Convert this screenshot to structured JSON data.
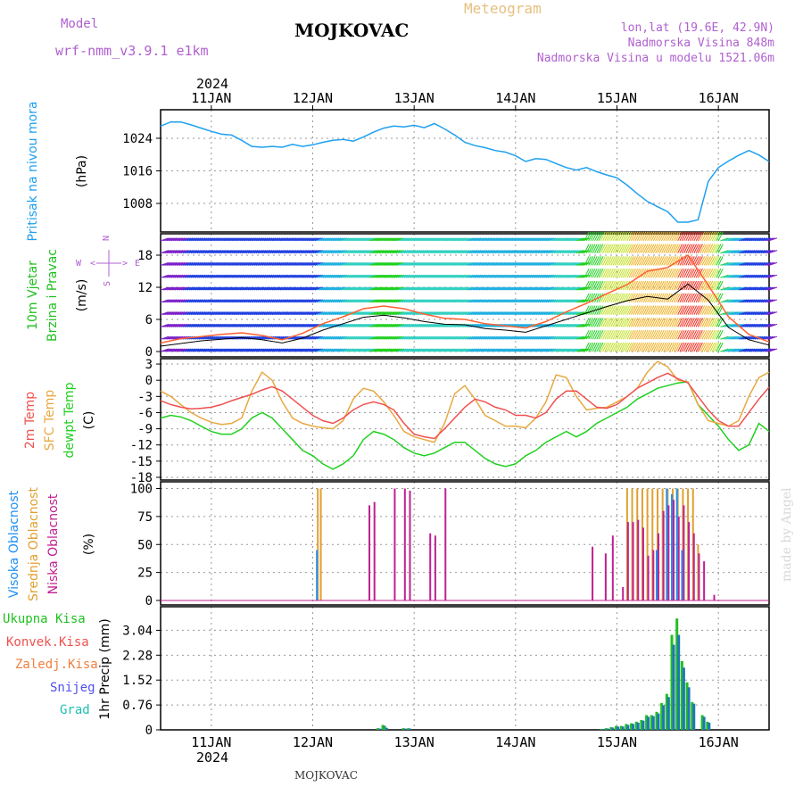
{
  "header": {
    "model_label": "Model",
    "model_name": "wrf-nmm_v3.9.1 e1km",
    "title": "MOJKOVAC",
    "meteogram": "Meteogram",
    "lonlat": "lon,lat (19.6E, 42.9N)",
    "altitude": "Nadmorska Visina 848m",
    "model_altitude": "Nadmorska Visina u modelu 1521.06m",
    "year": "2024"
  },
  "footer": {
    "station": "MOJKOVAC",
    "credit": "made by Angel"
  },
  "colors": {
    "pressure": "#1ea0f0",
    "temp2m": "#f05050",
    "sfc_temp": "#e8a840",
    "dewpt": "#20d020",
    "high_cloud": "#2090f0",
    "mid_cloud": "#e0a030",
    "low_cloud": "#c02090",
    "precip_total": "#20c020",
    "precip_conv": "#1f77b4",
    "wind_max": "#ff6030",
    "wind_speed": "#000000"
  },
  "chart_data": [
    {
      "type": "line",
      "name": "pressure",
      "x_ticks": [
        "11JAN",
        "12JAN",
        "13JAN",
        "14JAN",
        "15JAN",
        "16JAN"
      ],
      "ylabel_lines": [
        "Pritisak na nivou mora",
        "(hPa)"
      ],
      "y_ticks": [
        1008,
        1016,
        1024
      ],
      "ylim": [
        1001,
        1031
      ],
      "x": [
        10.5,
        10.6,
        10.7,
        10.8,
        10.9,
        11.0,
        11.1,
        11.2,
        11.3,
        11.4,
        11.5,
        11.6,
        11.7,
        11.8,
        11.9,
        12.0,
        12.1,
        12.2,
        12.3,
        12.4,
        12.5,
        12.6,
        12.7,
        12.8,
        12.9,
        13.0,
        13.1,
        13.2,
        13.3,
        13.4,
        13.5,
        13.6,
        13.7,
        13.8,
        13.9,
        14.0,
        14.1,
        14.2,
        14.3,
        14.4,
        14.5,
        14.6,
        14.7,
        14.8,
        14.9,
        15.0,
        15.1,
        15.2,
        15.3,
        15.4,
        15.5,
        15.6,
        15.7,
        15.8,
        15.9,
        16.0,
        16.1,
        16.2,
        16.3,
        16.4,
        16.5
      ],
      "values": [
        1027,
        1028,
        1028,
        1027.3,
        1026.5,
        1025.7,
        1025,
        1024.8,
        1023.5,
        1022,
        1021.8,
        1022,
        1021.8,
        1022.5,
        1022,
        1022.4,
        1023,
        1023.5,
        1023.7,
        1023.3,
        1024.3,
        1025.5,
        1026.5,
        1027,
        1026.8,
        1027.2,
        1026.6,
        1027.6,
        1026.3,
        1024.8,
        1023,
        1022.2,
        1021.7,
        1021,
        1020.6,
        1019.7,
        1018.3,
        1019,
        1018.8,
        1017.8,
        1016.8,
        1016.2,
        1016.8,
        1015.8,
        1015,
        1014.3,
        1012.5,
        1010.4,
        1008.5,
        1007.2,
        1006,
        1003.4,
        1003.4,
        1004,
        1013.4,
        1016.8,
        1018.4,
        1019.8,
        1021,
        1019.9,
        1018.3
      ]
    },
    {
      "type": "line",
      "name": "wind",
      "ylabel_lines": [
        "10m Vjetar",
        "Brzina i Pravac",
        "(m/s)"
      ],
      "compass": {
        "n": "N",
        "s": "S",
        "w": "W",
        "e": "E",
        "arrow_left": "<",
        "arrow_right": ">",
        "arrow_up": "^",
        "arrow_down": "v"
      },
      "y_ticks": [
        0,
        6,
        12,
        18
      ],
      "ylim": [
        -1,
        22
      ],
      "x": [
        10.5,
        10.7,
        10.9,
        11.1,
        11.3,
        11.5,
        11.7,
        11.9,
        12.1,
        12.3,
        12.5,
        12.7,
        12.9,
        13.1,
        13.3,
        13.5,
        13.7,
        13.9,
        14.1,
        14.3,
        14.5,
        14.7,
        14.9,
        15.1,
        15.3,
        15.5,
        15.7,
        15.9,
        16.1,
        16.3,
        16.5
      ],
      "series": [
        {
          "values": [
            1.0,
            1.5,
            2.0,
            2.3,
            2.6,
            2.2,
            1.6,
            2.5,
            4.0,
            5.2,
            6.4,
            6.8,
            6.3,
            5.6,
            5.1,
            5.0,
            4.3,
            4.0,
            3.6,
            4.8,
            6.0,
            7.2,
            8.4,
            9.5,
            10.3,
            9.8,
            12.6,
            9.6,
            4.5,
            2.2,
            1.2
          ]
        },
        {
          "values": [
            1.6,
            2.4,
            2.8,
            3.2,
            3.5,
            3.0,
            2.2,
            3.4,
            5.2,
            6.5,
            8.0,
            8.5,
            8.0,
            7.0,
            6.2,
            6.0,
            5.2,
            4.8,
            4.4,
            5.6,
            7.4,
            9.0,
            10.8,
            12.5,
            15.0,
            15.7,
            18.0,
            12.4,
            6.5,
            3.2,
            1.8
          ]
        }
      ]
    },
    {
      "type": "line",
      "name": "temperature",
      "ylabel_lines": [
        "2m Temp",
        "SFC Temp",
        "dewpt Temp",
        "(C)"
      ],
      "y_ticks": [
        -18,
        -15,
        -12,
        -9,
        -6,
        -3,
        0,
        3
      ],
      "ylim": [
        -18.5,
        4
      ],
      "x": [
        10.5,
        10.6,
        10.7,
        10.8,
        10.9,
        11.0,
        11.1,
        11.2,
        11.3,
        11.4,
        11.5,
        11.6,
        11.7,
        11.8,
        11.9,
        12.0,
        12.1,
        12.2,
        12.3,
        12.4,
        12.5,
        12.6,
        12.7,
        12.8,
        12.9,
        13.0,
        13.1,
        13.2,
        13.3,
        13.4,
        13.5,
        13.6,
        13.7,
        13.8,
        13.9,
        14.0,
        14.1,
        14.2,
        14.3,
        14.4,
        14.5,
        14.6,
        14.7,
        14.8,
        14.9,
        15.0,
        15.1,
        15.2,
        15.3,
        15.4,
        15.5,
        15.6,
        15.7,
        15.8,
        15.9,
        16.0,
        16.1,
        16.2,
        16.3,
        16.4,
        16.5
      ],
      "series": [
        {
          "values": [
            -3.8,
            -4.5,
            -5.0,
            -5.3,
            -5.2,
            -5.0,
            -4.5,
            -3.8,
            -3.2,
            -2.6,
            -1.8,
            -1.2,
            -2.0,
            -3.5,
            -5.0,
            -6.5,
            -7.5,
            -8.0,
            -7.0,
            -5.5,
            -4.5,
            -4.0,
            -4.5,
            -5.5,
            -8.0,
            -10.0,
            -10.5,
            -10.8,
            -9.0,
            -7.0,
            -5.0,
            -3.5,
            -4.0,
            -5.0,
            -5.5,
            -6.5,
            -6.5,
            -7.0,
            -6.0,
            -3.5,
            -2.0,
            -2.0,
            -3.5,
            -5.0,
            -5.2,
            -4.5,
            -3.0,
            -1.5,
            -0.5,
            0.5,
            1.3,
            0.3,
            -0.5,
            -3.0,
            -5.5,
            -7.5,
            -8.5,
            -8.5,
            -6.0,
            -3.5,
            -1.3
          ]
        },
        {
          "values": [
            -2.0,
            -3.0,
            -4.5,
            -6.0,
            -7.0,
            -7.8,
            -8.2,
            -8.0,
            -7.0,
            -2.0,
            1.5,
            0.0,
            -4.0,
            -7.0,
            -8.0,
            -8.5,
            -8.8,
            -9.0,
            -7.5,
            -3.5,
            -1.5,
            -2.0,
            -4.0,
            -6.5,
            -9.5,
            -10.5,
            -11.0,
            -11.5,
            -8.0,
            -2.5,
            -1.0,
            -3.5,
            -6.5,
            -7.5,
            -8.5,
            -8.5,
            -8.8,
            -7.0,
            -4.0,
            1.0,
            0.5,
            -3.0,
            -5.5,
            -5.2,
            -5.0,
            -4.0,
            -3.0,
            -1.5,
            1.5,
            3.5,
            2.5,
            0.0,
            -0.3,
            -4.5,
            -7.5,
            -8.0,
            -8.5,
            -7.5,
            -3.0,
            0.5,
            1.5
          ]
        },
        {
          "values": [
            -7.0,
            -6.5,
            -6.8,
            -7.5,
            -8.5,
            -9.5,
            -10.0,
            -10.0,
            -9.0,
            -7.0,
            -6.0,
            -7.0,
            -9.0,
            -11.0,
            -13.0,
            -14.0,
            -15.5,
            -16.5,
            -15.5,
            -14.0,
            -11.0,
            -9.5,
            -10.0,
            -11.0,
            -12.5,
            -13.5,
            -14.0,
            -13.5,
            -12.5,
            -11.5,
            -11.5,
            -13.0,
            -14.5,
            -15.5,
            -16.0,
            -15.5,
            -14.0,
            -13.0,
            -11.5,
            -10.5,
            -9.5,
            -10.5,
            -9.5,
            -8.0,
            -7.0,
            -6.0,
            -5.0,
            -3.5,
            -2.5,
            -1.5,
            -1.0,
            -0.5,
            -0.3,
            -4.5,
            -6.5,
            -8.5,
            -11.0,
            -13.0,
            -12.0,
            -8.0,
            -9.5
          ]
        }
      ]
    },
    {
      "type": "bar",
      "name": "cloud",
      "ylabel_lines": [
        "Visoka Oblacnost",
        "Srednja Oblacnost",
        "Niska Oblacnost",
        "(%)"
      ],
      "y_ticks": [
        0,
        25,
        50,
        75,
        100
      ],
      "ylim": [
        -4,
        106
      ],
      "x": [
        12.05,
        12.08,
        12.55,
        12.6,
        12.8,
        12.9,
        12.95,
        13.15,
        13.2,
        13.3,
        14.75,
        14.88,
        14.95,
        15.05,
        15.1,
        15.15,
        15.2,
        15.25,
        15.3,
        15.35,
        15.4,
        15.45,
        15.5,
        15.55,
        15.6,
        15.65,
        15.7,
        15.75,
        15.8,
        15.85,
        15.95
      ],
      "series": [
        {
          "values": [
            45,
            0,
            0,
            0,
            0,
            0,
            0,
            0,
            0,
            0,
            0,
            0,
            0,
            0,
            0,
            0,
            0,
            0,
            0,
            0,
            45,
            0,
            100,
            95,
            100,
            45,
            0,
            0,
            0,
            0,
            0
          ]
        },
        {
          "values": [
            100,
            100,
            0,
            0,
            0,
            0,
            0,
            0,
            0,
            0,
            0,
            0,
            0,
            0,
            100,
            100,
            100,
            100,
            100,
            100,
            100,
            100,
            100,
            100,
            100,
            100,
            100,
            100,
            50,
            0,
            0
          ]
        },
        {
          "values": [
            0,
            0,
            85,
            88,
            100,
            100,
            98,
            60,
            58,
            100,
            48,
            42,
            58,
            12,
            70,
            70,
            72,
            65,
            40,
            45,
            60,
            80,
            85,
            90,
            75,
            85,
            70,
            60,
            42,
            35,
            5
          ]
        }
      ]
    },
    {
      "type": "bar",
      "name": "precipitation",
      "legend": [
        "Ukupna Kisa",
        "Konvek.Kisa",
        "Zaledj.Kisa",
        "Snijeg",
        "Grad"
      ],
      "ylabel_lines": [
        "1hr Precip (mm)"
      ],
      "y_ticks": [
        0,
        0.76,
        1.52,
        2.28,
        3.04
      ],
      "ylim": [
        0,
        3.76
      ],
      "x": [
        12.65,
        12.7,
        12.72,
        12.9,
        12.95,
        14.85,
        14.9,
        14.95,
        15.0,
        15.05,
        15.1,
        15.15,
        15.2,
        15.25,
        15.3,
        15.35,
        15.4,
        15.45,
        15.5,
        15.55,
        15.6,
        15.65,
        15.7,
        15.75,
        15.85,
        15.9
      ],
      "series": [
        {
          "values": [
            0.05,
            0.15,
            0.08,
            0.05,
            0.05,
            0.03,
            0.05,
            0.08,
            0.12,
            0.12,
            0.18,
            0.2,
            0.25,
            0.3,
            0.45,
            0.45,
            0.55,
            0.82,
            1.1,
            2.9,
            3.4,
            2.1,
            1.45,
            0.85,
            0.45,
            0.25
          ]
        },
        {
          "values": [
            0.04,
            0.12,
            0.06,
            0.04,
            0.04,
            0.02,
            0.04,
            0.07,
            0.1,
            0.1,
            0.15,
            0.18,
            0.22,
            0.28,
            0.4,
            0.42,
            0.5,
            0.75,
            1.0,
            2.6,
            2.9,
            1.9,
            1.3,
            0.8,
            0.4,
            0.22
          ]
        }
      ]
    }
  ]
}
